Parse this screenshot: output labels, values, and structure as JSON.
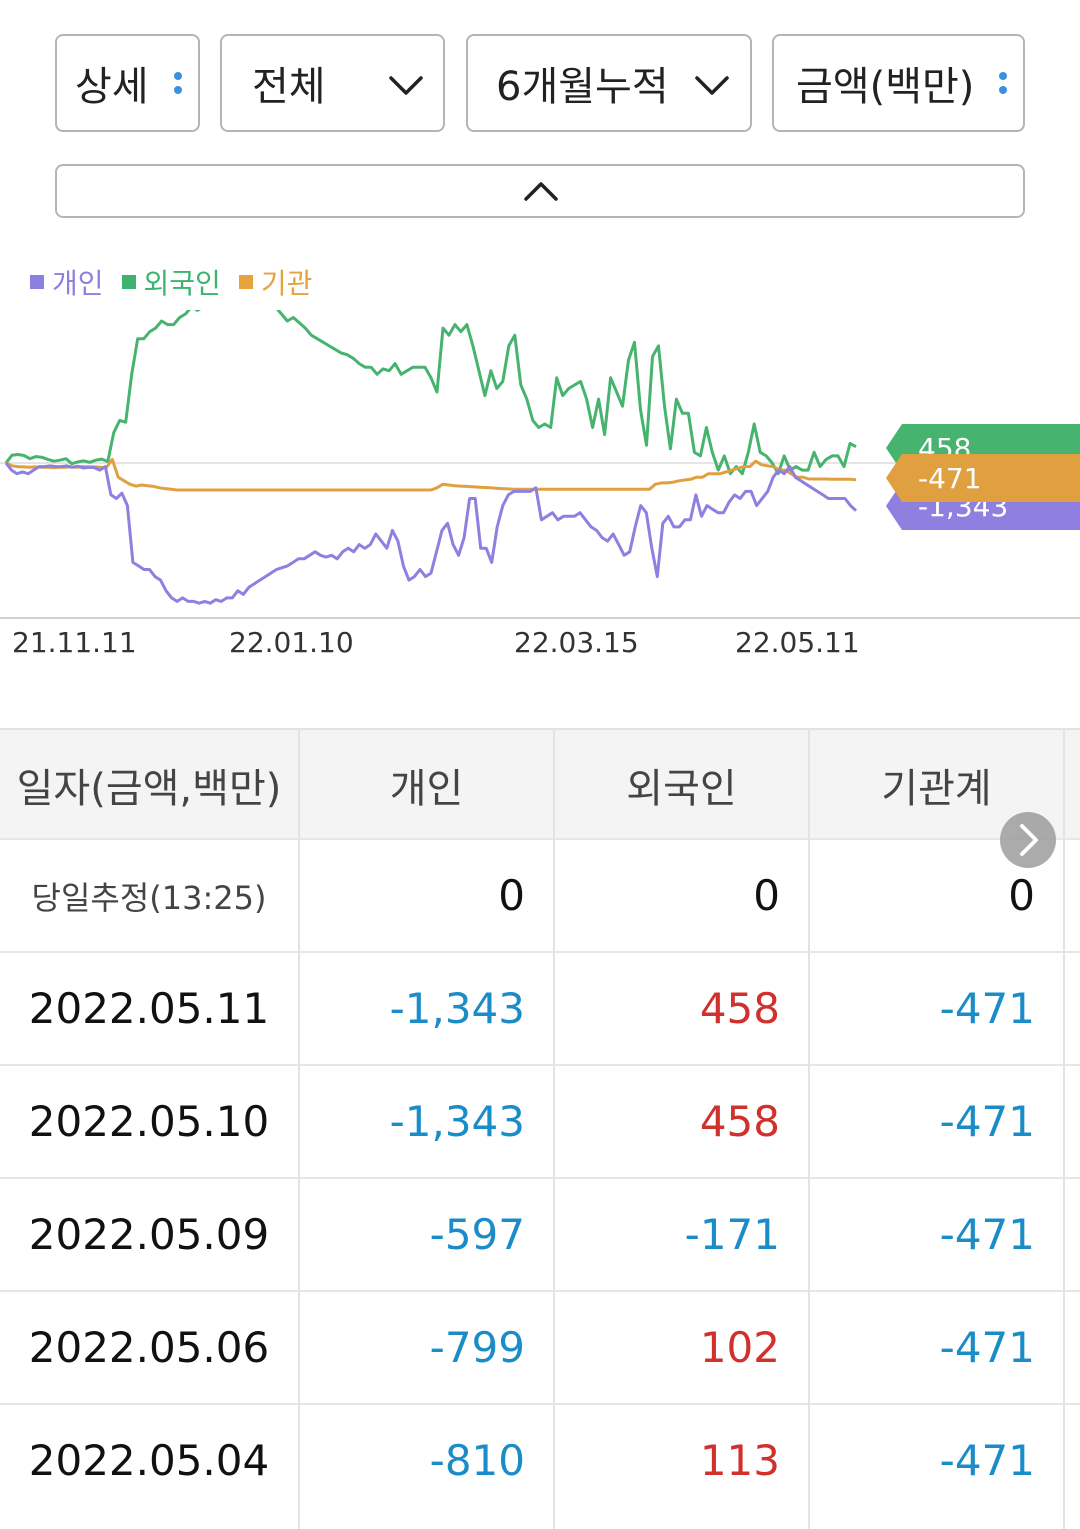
{
  "filters": {
    "detail": "상세",
    "scope": "전체",
    "period": "6개월누적",
    "unit": "금액(백만)"
  },
  "legend": [
    {
      "label": "개인",
      "color": "#8b7fe0"
    },
    {
      "label": "외국인",
      "color": "#3cb371"
    },
    {
      "label": "기관",
      "color": "#e6a23c"
    }
  ],
  "chart_data": {
    "type": "line",
    "x_ticks": [
      "21.11.11",
      "22.01.10",
      "22.03.15",
      "22.05.11"
    ],
    "series": [
      {
        "name": "외국인",
        "color": "#46b36e",
        "last_value": "458",
        "values": [
          0,
          220,
          240,
          210,
          120,
          180,
          160,
          100,
          50,
          80,
          120,
          -20,
          30,
          60,
          20,
          80,
          110,
          40,
          850,
          1200,
          1150,
          2500,
          3500,
          3500,
          3700,
          3800,
          4000,
          3900,
          3900,
          4100,
          4200,
          4400,
          4300,
          4400,
          4350,
          4500,
          4650,
          4600,
          4700,
          4550,
          4600,
          4700,
          4650,
          4550,
          4500,
          4400,
          4200,
          4000,
          4100,
          3950,
          3800,
          3600,
          3500,
          3400,
          3300,
          3200,
          3100,
          3050,
          2950,
          2800,
          2700,
          2700,
          2500,
          2650,
          2600,
          2800,
          2500,
          2600,
          2700,
          2700,
          2700,
          2400,
          2000,
          3800,
          3600,
          3900,
          3700,
          3900,
          3300,
          2600,
          1900,
          2600,
          2100,
          2300,
          3300,
          3600,
          2200,
          1800,
          1200,
          1000,
          1100,
          1000,
          2400,
          1900,
          2100,
          2200,
          2300,
          1800,
          1000,
          1800,
          800,
          2400,
          2000,
          1600,
          2900,
          3400,
          1500,
          500,
          3000,
          3300,
          1600,
          400,
          1800,
          1400,
          1400,
          300,
          200,
          1000,
          300,
          -200,
          200,
          -300,
          -100,
          -300,
          300,
          1100,
          300,
          200,
          0,
          -300,
          200,
          -200,
          -100,
          -200,
          -200,
          300,
          -100,
          100,
          200,
          200,
          -100,
          550,
          458
        ]
      },
      {
        "name": "기관",
        "color": "#e0a040",
        "last_value": "-471",
        "values": [
          0,
          -80,
          -100,
          -110,
          -120,
          -110,
          -120,
          -120,
          -130,
          -120,
          -120,
          -110,
          -120,
          -100,
          -110,
          -110,
          -120,
          -130,
          100,
          -400,
          -500,
          -600,
          -650,
          -620,
          -640,
          -660,
          -700,
          -720,
          -740,
          -760,
          -760,
          -760,
          -760,
          -760,
          -760,
          -760,
          -760,
          -760,
          -760,
          -760,
          -760,
          -760,
          -760,
          -760,
          -760,
          -760,
          -760,
          -760,
          -760,
          -760,
          -760,
          -760,
          -760,
          -760,
          -760,
          -760,
          -760,
          -760,
          -760,
          -760,
          -760,
          -760,
          -760,
          -760,
          -760,
          -760,
          -760,
          -760,
          -760,
          -760,
          -760,
          -760,
          -760,
          -700,
          -600,
          -620,
          -640,
          -650,
          -660,
          -670,
          -680,
          -690,
          -700,
          -710,
          -720,
          -730,
          -740,
          -740,
          -740,
          -740,
          -740,
          -740,
          -740,
          -740,
          -740,
          -740,
          -740,
          -740,
          -740,
          -740,
          -740,
          -740,
          -740,
          -740,
          -740,
          -740,
          -740,
          -740,
          -740,
          -740,
          -600,
          -560,
          -560,
          -540,
          -500,
          -480,
          -460,
          -400,
          -400,
          -300,
          -300,
          -300,
          -250,
          -200,
          -150,
          -100,
          -100,
          50,
          -50,
          -80,
          -100,
          -200,
          -200,
          -300,
          -400,
          -400,
          -450,
          -450,
          -450,
          -450,
          -460,
          -460,
          -460,
          -460,
          -471
        ]
      },
      {
        "name": "개인",
        "color": "#8e7fe0",
        "last_value": "-1,343",
        "values": [
          0,
          -200,
          -300,
          -250,
          -300,
          -200,
          -100,
          -100,
          -80,
          -100,
          -100,
          -80,
          -120,
          -90,
          -140,
          -120,
          -130,
          -200,
          -100,
          -900,
          -1000,
          -850,
          -1200,
          -2800,
          -2900,
          -3000,
          -3000,
          -3200,
          -3300,
          -3600,
          -3800,
          -3900,
          -3800,
          -3900,
          -3900,
          -3950,
          -3900,
          -3950,
          -3850,
          -3900,
          -3800,
          -3800,
          -3600,
          -3700,
          -3500,
          -3400,
          -3300,
          -3200,
          -3100,
          -3000,
          -2950,
          -2900,
          -2800,
          -2700,
          -2700,
          -2600,
          -2500,
          -2600,
          -2650,
          -2600,
          -2700,
          -2500,
          -2400,
          -2500,
          -2300,
          -2400,
          -2300,
          -2000,
          -2200,
          -2400,
          -1900,
          -2200,
          -2900,
          -3300,
          -3200,
          -3000,
          -3200,
          -3100,
          -2500,
          -1900,
          -1700,
          -2300,
          -2600,
          -2100,
          -1000,
          -1000,
          -2400,
          -2400,
          -2800,
          -1800,
          -1200,
          -900,
          -800,
          -800,
          -800,
          -800,
          -700,
          -1600,
          -1500,
          -1400,
          -1600,
          -1500,
          -1500,
          -1500,
          -1400,
          -1600,
          -1800,
          -1900,
          -2100,
          -2200,
          -2000,
          -2300,
          -2600,
          -2500,
          -1800,
          -1200,
          -1400,
          -2400,
          -3200,
          -1700,
          -1500,
          -1800,
          -1800,
          -1600,
          -1600,
          -900,
          -1500,
          -1200,
          -1300,
          -1400,
          -1400,
          -1100,
          -900,
          -1000,
          -800,
          -800,
          -1200,
          -1000,
          -800,
          -400,
          -200,
          -300,
          -100,
          -400,
          -500,
          -600,
          -700,
          -800,
          -900,
          -1000,
          -1000,
          -1000,
          -1000,
          -1200,
          -1343
        ]
      }
    ],
    "legend_position": "top-left",
    "grid": false
  },
  "table": {
    "headers": [
      "일자(금액,백만)",
      "개인",
      "외국인",
      "기관계"
    ],
    "rows": [
      {
        "date": "당일추정(13:25)",
        "individual": "0",
        "foreign": "0",
        "institution": "0",
        "ind_sign": "zero",
        "for_sign": "zero",
        "inst_sign": "zero"
      },
      {
        "date": "2022.05.11",
        "individual": "-1,343",
        "foreign": "458",
        "institution": "-471",
        "ind_sign": "neg",
        "for_sign": "pos",
        "inst_sign": "neg"
      },
      {
        "date": "2022.05.10",
        "individual": "-1,343",
        "foreign": "458",
        "institution": "-471",
        "ind_sign": "neg",
        "for_sign": "pos",
        "inst_sign": "neg"
      },
      {
        "date": "2022.05.09",
        "individual": "-597",
        "foreign": "-171",
        "institution": "-471",
        "ind_sign": "neg",
        "for_sign": "neg",
        "inst_sign": "neg"
      },
      {
        "date": "2022.05.06",
        "individual": "-799",
        "foreign": "102",
        "institution": "-471",
        "ind_sign": "neg",
        "for_sign": "pos",
        "inst_sign": "neg"
      },
      {
        "date": "2022.05.04",
        "individual": "-810",
        "foreign": "113",
        "institution": "-471",
        "ind_sign": "neg",
        "for_sign": "pos",
        "inst_sign": "neg"
      }
    ]
  }
}
